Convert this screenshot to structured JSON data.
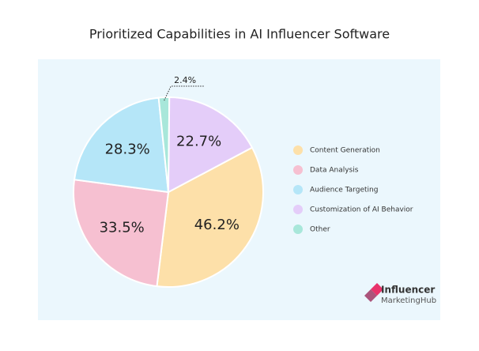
{
  "chart_data": {
    "type": "pie",
    "title": "Prioritized Capabilities in AI Influencer Software",
    "categories": [
      "Content Generation",
      "Data Analysis",
      "Audience Targeting",
      "Customization of AI Behavior",
      "Other"
    ],
    "values": [
      46.2,
      33.5,
      28.3,
      22.7,
      2.4
    ],
    "value_labels": [
      "46.2%",
      "33.5%",
      "28.3%",
      "22.7%",
      "2.4%"
    ],
    "colors": [
      "#fde0a9",
      "#f6c0d1",
      "#b5e6f8",
      "#e4cdf9",
      "#a8e7da"
    ],
    "legend": "right"
  },
  "branding": {
    "line1": "Influencer",
    "line2": "MarketingHub"
  }
}
